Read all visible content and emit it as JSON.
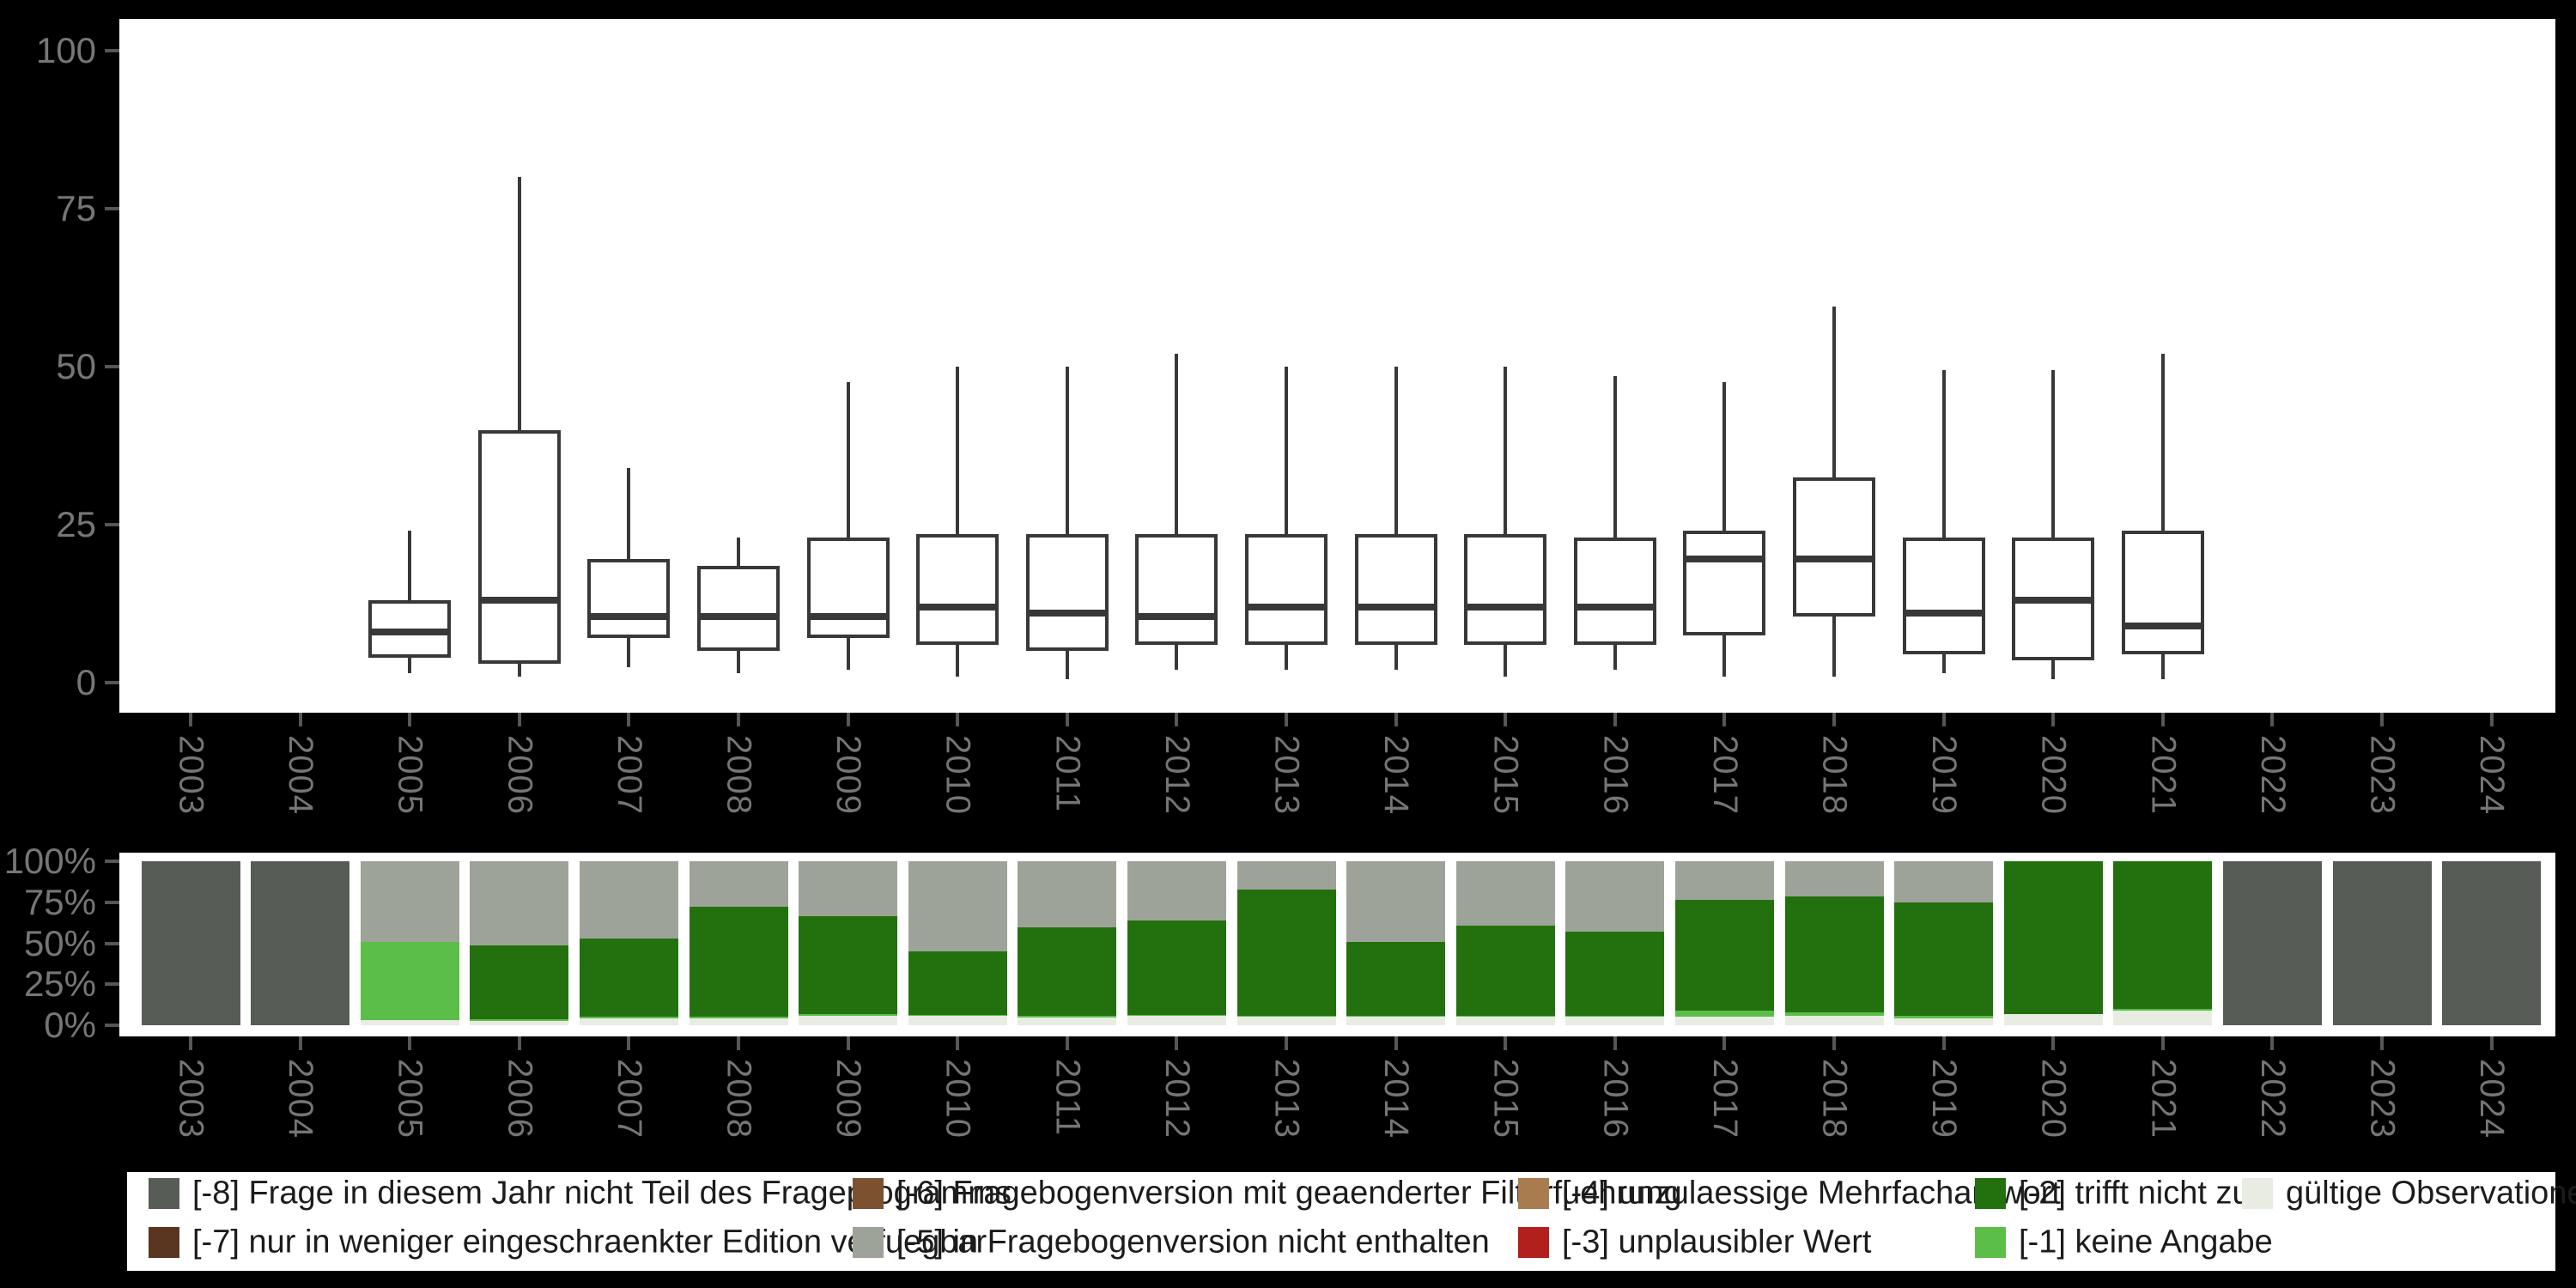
{
  "colors": {
    "background": "#000000",
    "panel": "#ffffff",
    "axis_text": "#757575",
    "tick_mark": "#565656",
    "box_stroke": "#383838",
    "legend_text": "#1c1c1c",
    "codes": {
      "m8": "#575D56",
      "m7": "#5A3620",
      "m6": "#7B5130",
      "m5": "#9EA399",
      "m4": "#A97C4F",
      "m3": "#B2201D",
      "m2": "#23700F",
      "m1": "#5BBE49",
      "valid": "#E8ECE3"
    }
  },
  "chart_data": [
    {
      "type": "boxplot",
      "title": "",
      "xlabel": "",
      "ylabel": "",
      "x_categories": [
        "2003",
        "2004",
        "2005",
        "2006",
        "2007",
        "2008",
        "2009",
        "2010",
        "2011",
        "2012",
        "2013",
        "2014",
        "2015",
        "2016",
        "2017",
        "2018",
        "2019",
        "2020",
        "2021",
        "2022",
        "2023",
        "2024"
      ],
      "ylim": [
        0,
        100
      ],
      "y_ticks": [
        0,
        25,
        50,
        75,
        100
      ],
      "y_tick_labels": [
        "0",
        "25",
        "50",
        "75",
        "100"
      ],
      "grid": false,
      "boxes": [
        {
          "year": "2005",
          "low": 1.5,
          "q1": 4,
          "median": 8,
          "q3": 13,
          "high": 24
        },
        {
          "year": "2006",
          "low": 1,
          "q1": 3,
          "median": 13,
          "q3": 40,
          "high": 80
        },
        {
          "year": "2007",
          "low": 2.5,
          "q1": 7,
          "median": 10.5,
          "q3": 19.5,
          "high": 34
        },
        {
          "year": "2008",
          "low": 1.5,
          "q1": 5,
          "median": 10.5,
          "q3": 18.5,
          "high": 23
        },
        {
          "year": "2009",
          "low": 2,
          "q1": 7,
          "median": 10.5,
          "q3": 23,
          "high": 47.5
        },
        {
          "year": "2010",
          "low": 1,
          "q1": 6,
          "median": 12,
          "q3": 23.5,
          "high": 50
        },
        {
          "year": "2011",
          "low": 0.5,
          "q1": 5,
          "median": 11,
          "q3": 23.5,
          "high": 50
        },
        {
          "year": "2012",
          "low": 2,
          "q1": 6,
          "median": 10.5,
          "q3": 23.5,
          "high": 52
        },
        {
          "year": "2013",
          "low": 2,
          "q1": 6,
          "median": 12,
          "q3": 23.5,
          "high": 50
        },
        {
          "year": "2014",
          "low": 2,
          "q1": 6,
          "median": 12,
          "q3": 23.5,
          "high": 50
        },
        {
          "year": "2015",
          "low": 1,
          "q1": 6,
          "median": 12,
          "q3": 23.5,
          "high": 50
        },
        {
          "year": "2016",
          "low": 2,
          "q1": 6,
          "median": 12,
          "q3": 23,
          "high": 48.5
        },
        {
          "year": "2017",
          "low": 1,
          "q1": 7.5,
          "median": 19.5,
          "q3": 24,
          "high": 47.5
        },
        {
          "year": "2018",
          "low": 1,
          "q1": 10.5,
          "median": 19.5,
          "q3": 32.5,
          "high": 59.5
        },
        {
          "year": "2019",
          "low": 1.5,
          "q1": 4.5,
          "median": 11,
          "q3": 23,
          "high": 49.5
        },
        {
          "year": "2020",
          "low": 0.5,
          "q1": 3.5,
          "median": 13,
          "q3": 23,
          "high": 49.5
        },
        {
          "year": "2021",
          "low": 0.5,
          "q1": 4.5,
          "median": 9,
          "q3": 24,
          "high": 52
        }
      ]
    },
    {
      "type": "bar",
      "stacked": true,
      "title": "",
      "xlabel": "",
      "ylabel": "",
      "x_categories": [
        "2003",
        "2004",
        "2005",
        "2006",
        "2007",
        "2008",
        "2009",
        "2010",
        "2011",
        "2012",
        "2013",
        "2014",
        "2015",
        "2016",
        "2017",
        "2018",
        "2019",
        "2020",
        "2021",
        "2022",
        "2023",
        "2024"
      ],
      "ylim": [
        0,
        100
      ],
      "y_ticks": [
        0,
        25,
        50,
        75,
        100
      ],
      "y_tick_labels": [
        "0%",
        "25%",
        "50%",
        "75%",
        "100%"
      ],
      "grid": false,
      "bars": [
        {
          "year": "2003",
          "segments": [
            {
              "code": "m8",
              "value": 100
            }
          ]
        },
        {
          "year": "2004",
          "segments": [
            {
              "code": "m8",
              "value": 100
            }
          ]
        },
        {
          "year": "2005",
          "segments": [
            {
              "code": "valid",
              "value": 3
            },
            {
              "code": "m1",
              "value": 48
            },
            {
              "code": "m5",
              "value": 49
            }
          ]
        },
        {
          "year": "2006",
          "segments": [
            {
              "code": "valid",
              "value": 2.5
            },
            {
              "code": "m1",
              "value": 1
            },
            {
              "code": "m2",
              "value": 45
            },
            {
              "code": "m5",
              "value": 51.5
            }
          ]
        },
        {
          "year": "2007",
          "segments": [
            {
              "code": "valid",
              "value": 4
            },
            {
              "code": "m1",
              "value": 1
            },
            {
              "code": "m2",
              "value": 48
            },
            {
              "code": "m5",
              "value": 47
            }
          ]
        },
        {
          "year": "2008",
          "segments": [
            {
              "code": "valid",
              "value": 4
            },
            {
              "code": "m1",
              "value": 1
            },
            {
              "code": "m2",
              "value": 67
            },
            {
              "code": "m5",
              "value": 28
            }
          ]
        },
        {
          "year": "2009",
          "segments": [
            {
              "code": "valid",
              "value": 6
            },
            {
              "code": "m1",
              "value": 1
            },
            {
              "code": "m2",
              "value": 59.5
            },
            {
              "code": "m5",
              "value": 33.5
            }
          ]
        },
        {
          "year": "2010",
          "segments": [
            {
              "code": "valid",
              "value": 5.5
            },
            {
              "code": "m1",
              "value": 1
            },
            {
              "code": "m2",
              "value": 38.5
            },
            {
              "code": "m5",
              "value": 55
            }
          ]
        },
        {
          "year": "2011",
          "segments": [
            {
              "code": "valid",
              "value": 4.5
            },
            {
              "code": "m1",
              "value": 1
            },
            {
              "code": "m2",
              "value": 54
            },
            {
              "code": "m5",
              "value": 40.5
            }
          ]
        },
        {
          "year": "2012",
          "segments": [
            {
              "code": "valid",
              "value": 5.5
            },
            {
              "code": "m1",
              "value": 1
            },
            {
              "code": "m2",
              "value": 57.5
            },
            {
              "code": "m5",
              "value": 36
            }
          ]
        },
        {
          "year": "2013",
          "segments": [
            {
              "code": "valid",
              "value": 5
            },
            {
              "code": "m1",
              "value": 1
            },
            {
              "code": "m2",
              "value": 76.5
            },
            {
              "code": "m5",
              "value": 17.5
            }
          ]
        },
        {
          "year": "2014",
          "segments": [
            {
              "code": "valid",
              "value": 5
            },
            {
              "code": "m1",
              "value": 0.5
            },
            {
              "code": "m2",
              "value": 45.5
            },
            {
              "code": "m5",
              "value": 49
            }
          ]
        },
        {
          "year": "2015",
          "segments": [
            {
              "code": "valid",
              "value": 5
            },
            {
              "code": "m1",
              "value": 0.5
            },
            {
              "code": "m2",
              "value": 55
            },
            {
              "code": "m5",
              "value": 39.5
            }
          ]
        },
        {
          "year": "2016",
          "segments": [
            {
              "code": "valid",
              "value": 5
            },
            {
              "code": "m1",
              "value": 0.5
            },
            {
              "code": "m2",
              "value": 51.5
            },
            {
              "code": "m5",
              "value": 43
            }
          ]
        },
        {
          "year": "2017",
          "segments": [
            {
              "code": "valid",
              "value": 5
            },
            {
              "code": "m1",
              "value": 4
            },
            {
              "code": "m2",
              "value": 67.5
            },
            {
              "code": "m5",
              "value": 23.5
            }
          ]
        },
        {
          "year": "2018",
          "segments": [
            {
              "code": "valid",
              "value": 6
            },
            {
              "code": "m1",
              "value": 2
            },
            {
              "code": "m2",
              "value": 70.5
            },
            {
              "code": "m5",
              "value": 21.5
            }
          ]
        },
        {
          "year": "2019",
          "segments": [
            {
              "code": "valid",
              "value": 4
            },
            {
              "code": "m1",
              "value": 1.5
            },
            {
              "code": "m2",
              "value": 69.5
            },
            {
              "code": "m5",
              "value": 25
            }
          ]
        },
        {
          "year": "2020",
          "segments": [
            {
              "code": "valid",
              "value": 7
            },
            {
              "code": "m2",
              "value": 93
            }
          ]
        },
        {
          "year": "2021",
          "segments": [
            {
              "code": "valid",
              "value": 9
            },
            {
              "code": "m1",
              "value": 1
            },
            {
              "code": "m2",
              "value": 90
            }
          ]
        },
        {
          "year": "2022",
          "segments": [
            {
              "code": "m8",
              "value": 100
            }
          ]
        },
        {
          "year": "2023",
          "segments": [
            {
              "code": "m8",
              "value": 100
            }
          ]
        },
        {
          "year": "2024",
          "segments": [
            {
              "code": "m8",
              "value": 100
            }
          ]
        }
      ]
    }
  ],
  "legend": {
    "columns": [
      [
        {
          "code": "m8",
          "label": "[-8] Frage in diesem Jahr nicht Teil des Frageprogramms"
        },
        {
          "code": "m7",
          "label": "[-7] nur in weniger eingeschraenkter Edition verfuegbar"
        }
      ],
      [
        {
          "code": "m6",
          "label": "[-6] Fragebogenversion mit geaenderter Filterfuehrung"
        },
        {
          "code": "m5",
          "label": "[-5] in Fragebogenversion nicht enthalten"
        }
      ],
      [
        {
          "code": "m4",
          "label": "[-4] unzulaessige Mehrfachantwort"
        },
        {
          "code": "m3",
          "label": "[-3] unplausibler Wert"
        }
      ],
      [
        {
          "code": "m2",
          "label": "[-2] trifft nicht zu"
        },
        {
          "code": "m1",
          "label": "[-1] keine Angabe"
        }
      ],
      [
        {
          "code": "valid",
          "label": "gültige Observationen"
        }
      ]
    ]
  }
}
